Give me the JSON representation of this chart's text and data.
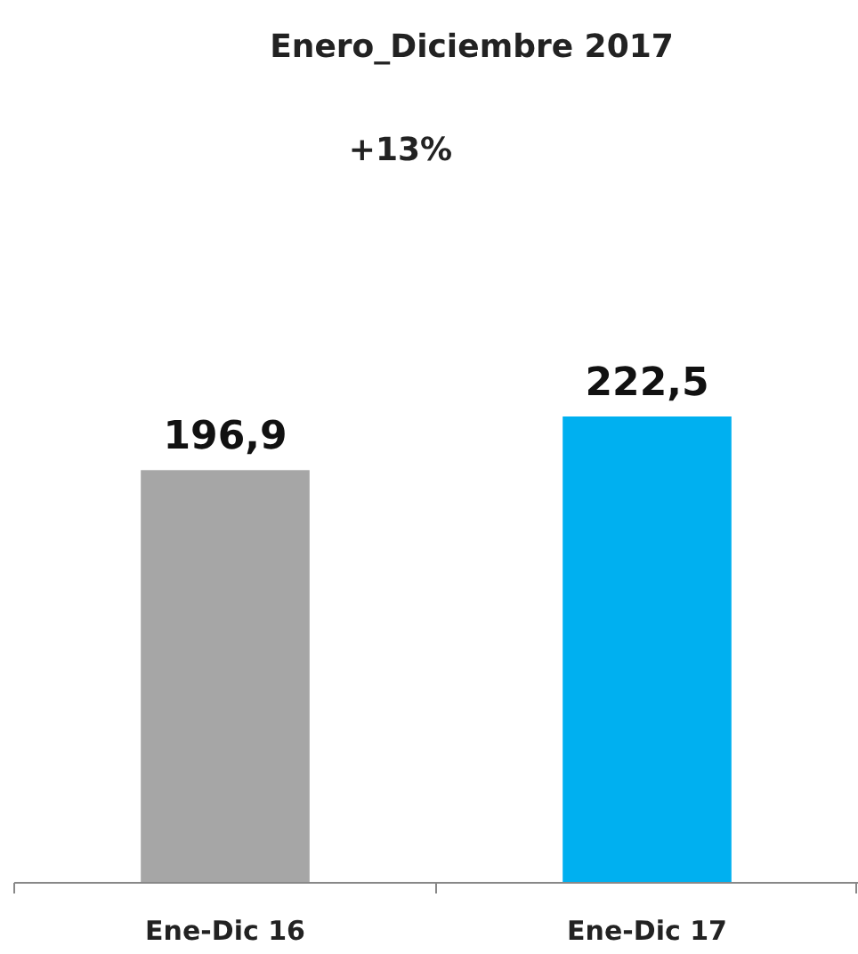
{
  "chart_data": {
    "type": "bar",
    "title": "Enero_Diciembre 2017",
    "annotations": [
      "+13%"
    ],
    "categories": [
      "Ene-Dic 16",
      "Ene-Dic 17"
    ],
    "values": [
      196.9,
      222.5
    ],
    "colors": [
      "#a6a6a6",
      "#00b0f0"
    ],
    "value_labels": [
      "196,9",
      "222,5"
    ],
    "tick_labels": "x"
  }
}
